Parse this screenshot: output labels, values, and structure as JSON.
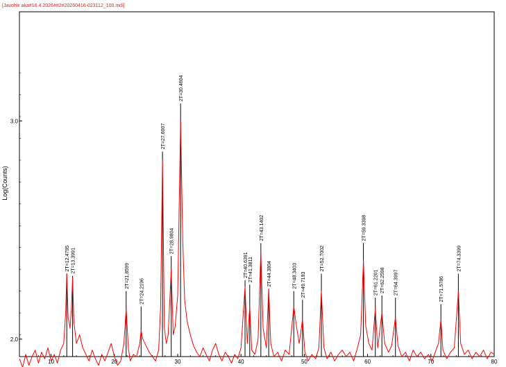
{
  "file_label": "[Javohix aka#16.4.2026##2#20260416-023112_100.mdi]",
  "chart_data": {
    "type": "line",
    "title": "",
    "xlabel": "",
    "ylabel": "Log(Counts)",
    "xlim": [
      5,
      80
    ],
    "ylim": [
      1.92,
      3.5
    ],
    "x_ticks": [
      10,
      20,
      30,
      40,
      50,
      60,
      70,
      80
    ],
    "y_ticks": [
      2.0,
      3.0
    ],
    "y_tick_labels": [
      "2.0",
      "3.0"
    ],
    "grid": false,
    "colors": {
      "pattern": "#ff0000",
      "peak_marker": "#000000",
      "axis": "#000000"
    },
    "series": [
      {
        "points": [
          [
            5.0,
            1.91
          ],
          [
            5.5,
            1.87
          ],
          [
            6.0,
            1.93
          ],
          [
            6.5,
            1.88
          ],
          [
            7.0,
            1.92
          ],
          [
            7.5,
            1.95
          ],
          [
            8.0,
            1.89
          ],
          [
            8.5,
            1.94
          ],
          [
            9.0,
            1.91
          ],
          [
            9.5,
            1.96
          ],
          [
            10.0,
            1.9
          ],
          [
            10.5,
            1.93
          ],
          [
            11.0,
            1.89
          ],
          [
            11.5,
            1.95
          ],
          [
            12.0,
            1.98
          ],
          [
            12.3,
            2.12
          ],
          [
            12.48,
            2.3
          ],
          [
            12.7,
            2.1
          ],
          [
            13.0,
            2.05
          ],
          [
            13.2,
            2.14
          ],
          [
            13.4,
            2.28
          ],
          [
            13.6,
            2.08
          ],
          [
            14.0,
            1.98
          ],
          [
            14.5,
            2.02
          ],
          [
            15.0,
            1.96
          ],
          [
            15.5,
            1.93
          ],
          [
            16.0,
            1.9
          ],
          [
            16.5,
            1.95
          ],
          [
            17.0,
            1.91
          ],
          [
            17.5,
            1.88
          ],
          [
            18.0,
            1.93
          ],
          [
            18.5,
            1.9
          ],
          [
            19.0,
            1.94
          ],
          [
            19.5,
            1.98
          ],
          [
            20.0,
            1.92
          ],
          [
            20.5,
            1.88
          ],
          [
            21.0,
            1.9
          ],
          [
            21.5,
            1.98
          ],
          [
            21.86,
            2.14
          ],
          [
            22.2,
            1.96
          ],
          [
            22.5,
            1.9
          ],
          [
            23.0,
            1.93
          ],
          [
            23.5,
            1.92
          ],
          [
            24.0,
            1.98
          ],
          [
            24.22,
            2.04
          ],
          [
            24.5,
            2.0
          ],
          [
            25.0,
            1.97
          ],
          [
            25.5,
            1.94
          ],
          [
            26.0,
            1.92
          ],
          [
            26.5,
            1.9
          ],
          [
            27.0,
            1.95
          ],
          [
            27.3,
            2.15
          ],
          [
            27.6,
            2.82
          ],
          [
            27.9,
            2.05
          ],
          [
            28.2,
            1.98
          ],
          [
            28.5,
            2.02
          ],
          [
            28.98,
            2.32
          ],
          [
            29.3,
            2.02
          ],
          [
            29.6,
            2.06
          ],
          [
            30.0,
            2.2
          ],
          [
            30.46,
            3.0
          ],
          [
            30.8,
            2.45
          ],
          [
            31.1,
            2.18
          ],
          [
            31.5,
            2.08
          ],
          [
            32.0,
            2.02
          ],
          [
            32.5,
            1.97
          ],
          [
            33.0,
            1.94
          ],
          [
            33.5,
            1.92
          ],
          [
            34.0,
            1.96
          ],
          [
            34.5,
            1.93
          ],
          [
            35.0,
            1.9
          ],
          [
            35.5,
            1.95
          ],
          [
            36.0,
            1.98
          ],
          [
            36.5,
            1.93
          ],
          [
            37.0,
            1.9
          ],
          [
            37.5,
            1.94
          ],
          [
            38.0,
            1.92
          ],
          [
            38.5,
            1.89
          ],
          [
            39.0,
            1.93
          ],
          [
            39.5,
            1.91
          ],
          [
            40.0,
            1.96
          ],
          [
            40.64,
            2.24
          ],
          [
            41.0,
            1.98
          ],
          [
            41.38,
            2.15
          ],
          [
            41.7,
            1.95
          ],
          [
            42.2,
            1.93
          ],
          [
            42.7,
            2.0
          ],
          [
            43.14,
            2.4
          ],
          [
            43.5,
            2.05
          ],
          [
            44.0,
            1.96
          ],
          [
            44.38,
            2.23
          ],
          [
            44.7,
            1.98
          ],
          [
            45.2,
            1.92
          ],
          [
            45.8,
            1.94
          ],
          [
            46.4,
            1.9
          ],
          [
            47.0,
            1.95
          ],
          [
            47.6,
            1.93
          ],
          [
            48.34,
            2.15
          ],
          [
            48.8,
            2.05
          ],
          [
            49.2,
            1.98
          ],
          [
            49.72,
            2.09
          ],
          [
            50.1,
            1.94
          ],
          [
            50.6,
            1.9
          ],
          [
            51.2,
            1.93
          ],
          [
            51.8,
            1.91
          ],
          [
            52.3,
            1.96
          ],
          [
            52.7,
            2.22
          ],
          [
            53.1,
            1.96
          ],
          [
            53.6,
            1.91
          ],
          [
            54.2,
            1.94
          ],
          [
            54.8,
            1.9
          ],
          [
            55.4,
            1.93
          ],
          [
            56.0,
            1.95
          ],
          [
            56.6,
            1.92
          ],
          [
            57.2,
            1.94
          ],
          [
            57.8,
            1.9
          ],
          [
            58.4,
            1.96
          ],
          [
            58.9,
            2.02
          ],
          [
            59.34,
            2.36
          ],
          [
            59.7,
            2.06
          ],
          [
            60.2,
            1.98
          ],
          [
            60.7,
            1.95
          ],
          [
            61.22,
            2.14
          ],
          [
            61.6,
            1.96
          ],
          [
            62.26,
            2.12
          ],
          [
            62.7,
            1.98
          ],
          [
            63.3,
            1.94
          ],
          [
            63.8,
            1.97
          ],
          [
            64.4,
            2.1
          ],
          [
            64.8,
            1.97
          ],
          [
            65.4,
            1.92
          ],
          [
            66.0,
            1.94
          ],
          [
            66.6,
            1.9
          ],
          [
            67.2,
            1.95
          ],
          [
            67.8,
            1.92
          ],
          [
            68.4,
            1.94
          ],
          [
            69.0,
            1.91
          ],
          [
            69.6,
            1.93
          ],
          [
            70.2,
            1.9
          ],
          [
            70.8,
            1.95
          ],
          [
            71.2,
            1.98
          ],
          [
            71.58,
            2.09
          ],
          [
            71.9,
            1.95
          ],
          [
            72.5,
            1.91
          ],
          [
            73.1,
            1.94
          ],
          [
            73.7,
            1.96
          ],
          [
            74.34,
            2.22
          ],
          [
            74.7,
            1.98
          ],
          [
            75.3,
            1.93
          ],
          [
            75.9,
            1.95
          ],
          [
            76.5,
            1.91
          ],
          [
            77.1,
            1.94
          ],
          [
            77.7,
            1.92
          ],
          [
            78.3,
            1.95
          ],
          [
            78.9,
            1.91
          ],
          [
            79.5,
            1.94
          ],
          [
            80.0,
            1.93
          ]
        ]
      }
    ],
    "peaks": [
      {
        "x": 12.4795,
        "y": 2.3,
        "label": "2T=12.4795"
      },
      {
        "x": 13.3991,
        "y": 2.29,
        "label": "2T=13.3991"
      },
      {
        "x": 21.8599,
        "y": 2.22,
        "label": "2T=21.8599"
      },
      {
        "x": 24.2196,
        "y": 2.15,
        "label": "2T=24.2196"
      },
      {
        "x": 27.6007,
        "y": 2.86,
        "label": "2T=27.6007"
      },
      {
        "x": 28.9804,
        "y": 2.38,
        "label": "2T=28.9804"
      },
      {
        "x": 30.4604,
        "y": 3.08,
        "label": "2T=30.4604"
      },
      {
        "x": 40.6391,
        "y": 2.27,
        "label": "2T=40.6391"
      },
      {
        "x": 41.3811,
        "y": 2.25,
        "label": "2T=41.3811"
      },
      {
        "x": 43.1402,
        "y": 2.44,
        "label": "2T=43.1402"
      },
      {
        "x": 44.3804,
        "y": 2.23,
        "label": "2T=44.3804"
      },
      {
        "x": 48.3403,
        "y": 2.22,
        "label": "2T=48.3403"
      },
      {
        "x": 49.7193,
        "y": 2.18,
        "label": "2T=49.7193"
      },
      {
        "x": 52.7002,
        "y": 2.3,
        "label": "2T=52.7002"
      },
      {
        "x": 59.3398,
        "y": 2.44,
        "label": "2T=59.3398"
      },
      {
        "x": 61.2201,
        "y": 2.19,
        "label": "2T=61.2201"
      },
      {
        "x": 62.2598,
        "y": 2.2,
        "label": "2T=62.2598"
      },
      {
        "x": 64.3997,
        "y": 2.19,
        "label": "2T=64.3997"
      },
      {
        "x": 71.5786,
        "y": 2.16,
        "label": "2T=71.5786"
      },
      {
        "x": 74.3399,
        "y": 2.3,
        "label": "2T=74.3399"
      }
    ]
  }
}
